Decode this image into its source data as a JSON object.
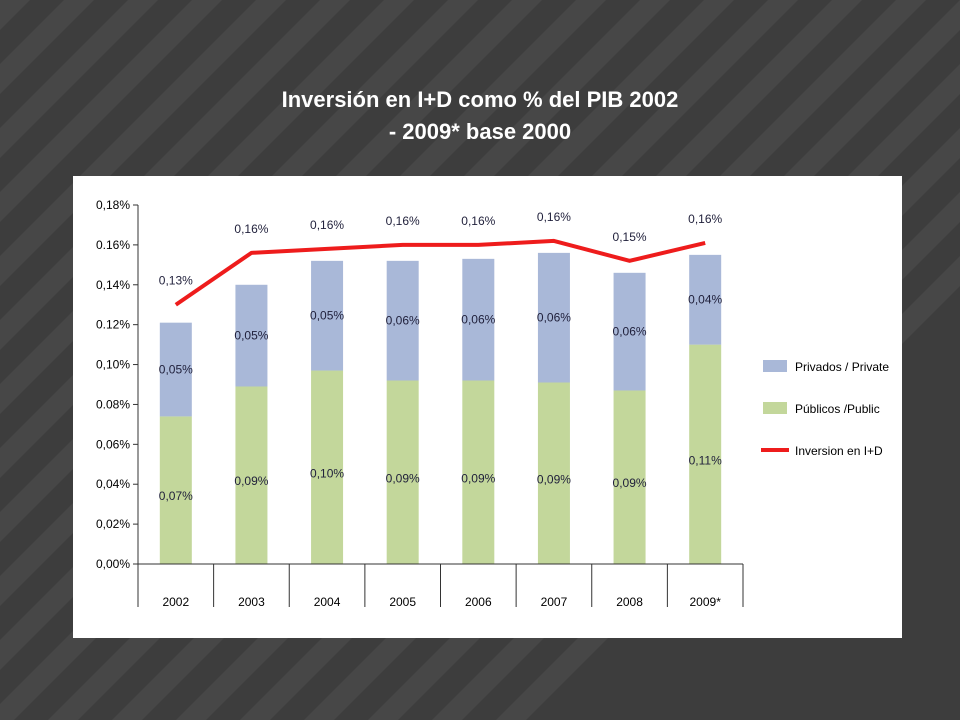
{
  "slide": {
    "title_line1": "Inversión en I+D como % del PIB 2002",
    "title_line2": "- 2009* base 2000"
  },
  "colors": {
    "background": "#3d3d3d",
    "stripe": "#474747",
    "panel": "#ffffff",
    "privados": "#a9b8d8",
    "publicos": "#c3d79b",
    "line": "#ee1c1c",
    "gridline": "#000000"
  },
  "chart_data": {
    "type": "bar",
    "stacked": true,
    "categories": [
      "2002",
      "2003",
      "2004",
      "2005",
      "2006",
      "2007",
      "2008",
      "2009*"
    ],
    "series": [
      {
        "name": "Públicos /Public",
        "type": "bar",
        "values": [
          0.074,
          0.089,
          0.097,
          0.092,
          0.092,
          0.091,
          0.087,
          0.11
        ],
        "labels": [
          "0,07%",
          "0,09%",
          "0,10%",
          "0,09%",
          "0,09%",
          "0,09%",
          "0,09%",
          "0,11%"
        ]
      },
      {
        "name": "Privados / Private",
        "type": "bar",
        "values": [
          0.047,
          0.051,
          0.055,
          0.06,
          0.061,
          0.065,
          0.059,
          0.045
        ],
        "labels": [
          "0,05%",
          "0,05%",
          "0,05%",
          "0,06%",
          "0,06%",
          "0,06%",
          "0,06%",
          "0,04%"
        ]
      },
      {
        "name": "Inversion en I+D",
        "type": "line",
        "values": [
          0.13,
          0.156,
          0.158,
          0.16,
          0.16,
          0.162,
          0.152,
          0.161
        ],
        "labels": [
          "0,13%",
          "0,16%",
          "0,16%",
          "0,16%",
          "0,16%",
          "0,16%",
          "0,15%",
          "0,16%"
        ]
      }
    ],
    "ylim": [
      0,
      0.18
    ],
    "yticks": [
      "0,00%",
      "0,02%",
      "0,04%",
      "0,06%",
      "0.08%",
      "0,10%",
      "0.12%",
      "0,14%",
      "0.16%",
      "0,18%"
    ],
    "grid": false,
    "legend": "right"
  }
}
